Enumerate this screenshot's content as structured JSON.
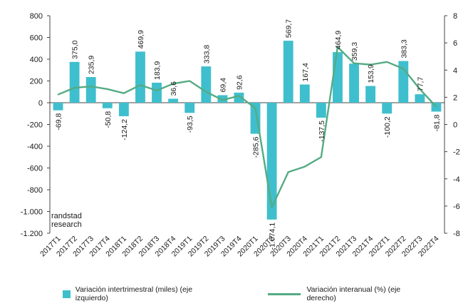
{
  "chart_data": {
    "type": "bar+line",
    "categories": [
      "2017T1",
      "2017T2",
      "2017T3",
      "2017T4",
      "2018T1",
      "2018T2",
      "2018T3",
      "2018T4",
      "2019T1",
      "2019T2",
      "2019T3",
      "2019T4",
      "2020T1",
      "2020T2",
      "2020T3",
      "2020T4",
      "2021T1",
      "2021T2",
      "2021T3",
      "2021T4",
      "2022T1",
      "2022T2",
      "2022T3",
      "2022T4"
    ],
    "series": [
      {
        "name": "Variación intertrimestral (miles) (eje izquierdo)",
        "type": "bar",
        "axis": "left",
        "color": "#3fbfcd",
        "values": [
          -69.8,
          375.0,
          235.9,
          -50.8,
          -124.2,
          469.9,
          183.9,
          36.6,
          -93.5,
          333.8,
          69.4,
          92.6,
          -285.6,
          -1074.1,
          569.7,
          167.4,
          -137.5,
          464.9,
          359.3,
          153.9,
          -100.2,
          383.3,
          77.7,
          -81.8
        ],
        "labels": [
          "-69,8",
          "375,0",
          "235,9",
          "-50,8",
          "-124,2",
          "469,9",
          "183,9",
          "36,6",
          "-93,5",
          "333,8",
          "69,4",
          "92,6",
          "-285,6",
          "-1.074,1",
          "569,7",
          "167,4",
          "-137,5",
          "464,9",
          "359,3",
          "153,9",
          "-100,2",
          "383,3",
          "77,7",
          "-81,8"
        ]
      },
      {
        "name": "Variación interanual (%) (eje derecho)",
        "type": "line",
        "axis": "right",
        "color": "#55ab83",
        "values": [
          2.2,
          2.7,
          2.8,
          2.6,
          2.3,
          2.9,
          2.5,
          3.0,
          3.2,
          2.4,
          1.8,
          2.1,
          1.2,
          -6.1,
          -3.5,
          -3.1,
          -2.4,
          5.7,
          4.5,
          4.4,
          4.6,
          4.1,
          2.6,
          1.3
        ]
      }
    ],
    "left_axis": {
      "ylim": [
        -1200,
        800
      ],
      "ticks": [
        800,
        600,
        400,
        200,
        0,
        -200,
        -400,
        -600,
        -800,
        -1000,
        -1200
      ],
      "tick_labels": [
        "800",
        "600",
        "400",
        "200",
        "0",
        "-200",
        "-400",
        "-600",
        "-800",
        "-1.000",
        "-1.200"
      ]
    },
    "right_axis": {
      "ylim": [
        -8,
        8
      ],
      "ticks": [
        8,
        6,
        4,
        2,
        0,
        -2,
        -4,
        -6,
        -8
      ],
      "tick_labels": [
        "8",
        "6",
        "4",
        "2",
        "0",
        "-2",
        "-4",
        "-6",
        "-8"
      ]
    },
    "grid": false,
    "legend_position": "bottom",
    "watermark": [
      "randstad",
      "research"
    ]
  }
}
